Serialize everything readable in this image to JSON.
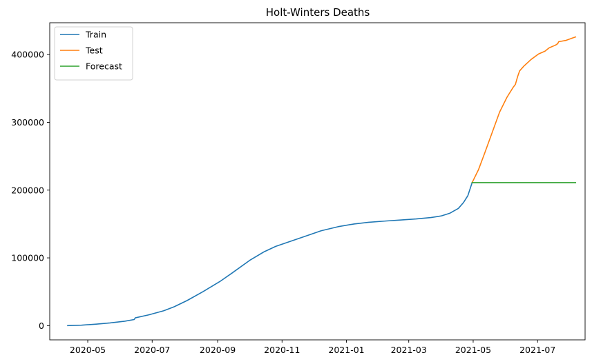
{
  "chart_data": {
    "type": "line",
    "title": "Holt-Winters Deaths",
    "xlabel": "",
    "ylabel": "",
    "x_type": "date",
    "xlim": [
      "2020-03-26",
      "2021-08-15"
    ],
    "ylim": [
      -21000,
      447000
    ],
    "xticks": [
      "2020-05-01",
      "2020-07-01",
      "2020-09-01",
      "2020-11-01",
      "2021-01-01",
      "2021-03-01",
      "2021-05-01",
      "2021-07-01"
    ],
    "xtick_labels": [
      "2020-05",
      "2020-07",
      "2020-09",
      "2020-11",
      "2021-01",
      "2021-03",
      "2021-05",
      "2021-07"
    ],
    "yticks": [
      0,
      100000,
      200000,
      300000,
      400000
    ],
    "ytick_labels": [
      "0",
      "100000",
      "200000",
      "300000",
      "400000"
    ],
    "grid": false,
    "legend_position": "top-left",
    "series": [
      {
        "name": "Train",
        "color": "#1f77b4",
        "points": [
          [
            "2020-04-12",
            0
          ],
          [
            "2020-04-25",
            700
          ],
          [
            "2020-05-09",
            2200
          ],
          [
            "2020-05-22",
            4000
          ],
          [
            "2020-06-05",
            6500
          ],
          [
            "2020-06-14",
            9000
          ],
          [
            "2020-06-15",
            11500
          ],
          [
            "2020-06-28",
            16000
          ],
          [
            "2020-07-12",
            22000
          ],
          [
            "2020-07-22",
            28000
          ],
          [
            "2020-08-03",
            37000
          ],
          [
            "2020-08-18",
            50000
          ],
          [
            "2020-09-03",
            65000
          ],
          [
            "2020-09-15",
            78000
          ],
          [
            "2020-10-02",
            97000
          ],
          [
            "2020-10-15",
            109000
          ],
          [
            "2020-10-26",
            117000
          ],
          [
            "2020-11-10",
            125000
          ],
          [
            "2020-11-25",
            133000
          ],
          [
            "2020-12-08",
            140000
          ],
          [
            "2020-12-24",
            146000
          ],
          [
            "2021-01-08",
            150000
          ],
          [
            "2021-01-22",
            152500
          ],
          [
            "2021-02-08",
            154500
          ],
          [
            "2021-02-22",
            156000
          ],
          [
            "2021-03-08",
            157500
          ],
          [
            "2021-03-22",
            159500
          ],
          [
            "2021-04-01",
            162000
          ],
          [
            "2021-04-09",
            166000
          ],
          [
            "2021-04-17",
            173000
          ],
          [
            "2021-04-22",
            182000
          ],
          [
            "2021-04-26",
            192000
          ],
          [
            "2021-04-30",
            211000
          ]
        ]
      },
      {
        "name": "Test",
        "color": "#ff7f0e",
        "points": [
          [
            "2021-04-30",
            211000
          ],
          [
            "2021-05-06",
            230000
          ],
          [
            "2021-05-12",
            255000
          ],
          [
            "2021-05-19",
            285000
          ],
          [
            "2021-05-26",
            315000
          ],
          [
            "2021-06-02",
            337000
          ],
          [
            "2021-06-08",
            352000
          ],
          [
            "2021-06-10",
            356000
          ],
          [
            "2021-06-12",
            367000
          ],
          [
            "2021-06-14",
            376000
          ],
          [
            "2021-06-18",
            383000
          ],
          [
            "2021-06-25",
            393000
          ],
          [
            "2021-07-02",
            401000
          ],
          [
            "2021-07-08",
            405000
          ],
          [
            "2021-07-12",
            410000
          ],
          [
            "2021-07-18",
            414000
          ],
          [
            "2021-07-20",
            416000
          ],
          [
            "2021-07-21",
            419000
          ],
          [
            "2021-07-28",
            421000
          ],
          [
            "2021-08-04",
            425000
          ],
          [
            "2021-08-06",
            426000
          ]
        ]
      },
      {
        "name": "Forecast",
        "color": "#2ca02c",
        "points": [
          [
            "2021-04-30",
            211000
          ],
          [
            "2021-08-06",
            211000
          ]
        ]
      }
    ]
  }
}
